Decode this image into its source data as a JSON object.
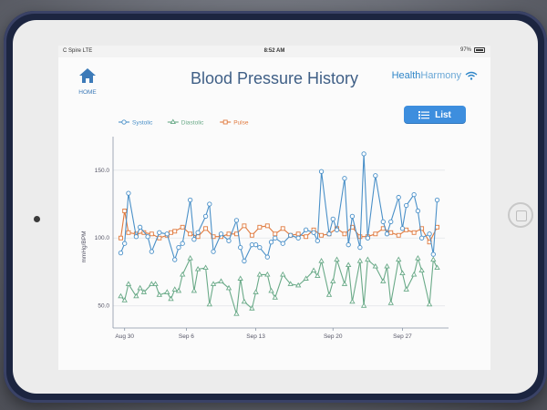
{
  "status_bar": {
    "carrier": "C Spire  LTE",
    "time": "8:52 AM",
    "battery": "97%"
  },
  "header": {
    "home_label": "HOME",
    "title": "Blood Pressure History",
    "logo_text_1": "Health",
    "logo_text_2": "Harmony",
    "list_label": "List"
  },
  "icons": {
    "home": "home-icon",
    "list": "list-icon",
    "wifi": "wifi-icon",
    "camera": "camera-dot",
    "device_home": "device-home-button"
  },
  "colors": {
    "systolic": "#4a90c8",
    "diastolic": "#6aaa88",
    "pulse": "#e07a3e",
    "title": "#3f5f86",
    "button": "#3d8ede"
  },
  "chart_data": {
    "type": "line",
    "ylabel": "mmHg/BPM",
    "ylim": [
      35,
      168
    ],
    "yticks": [
      50.0,
      100.0,
      150.0
    ],
    "ytick_labels": [
      "50.0",
      "100.0",
      "150.0"
    ],
    "xrange": [
      0,
      43
    ],
    "xticks": [
      {
        "x": 1.5,
        "label": "Aug 30"
      },
      {
        "x": 9.5,
        "label": "Sep 6"
      },
      {
        "x": 18.5,
        "label": "Sep 13"
      },
      {
        "x": 28.5,
        "label": "Sep 20"
      },
      {
        "x": 37.5,
        "label": "Sep 27"
      }
    ],
    "series": [
      {
        "name": "Systolic",
        "marker": "circle",
        "x": [
          1,
          1.5,
          2,
          3,
          3.5,
          4.5,
          5,
          6,
          7,
          8,
          8.5,
          9,
          10,
          10.5,
          11,
          12,
          12.5,
          13,
          14,
          15,
          16,
          16.5,
          17,
          18,
          18.5,
          19,
          20,
          20.5,
          21,
          22,
          23,
          24,
          25,
          26,
          26.5,
          27,
          28,
          28.5,
          29,
          30,
          30.5,
          31,
          32,
          32.5,
          33,
          34,
          35,
          35.5,
          36,
          37,
          37.5,
          38,
          39,
          39.5,
          40,
          41,
          41.5,
          42
        ],
        "y": [
          89,
          96,
          133,
          101,
          108,
          101,
          90,
          104,
          103,
          84,
          93,
          96,
          128,
          99,
          104,
          116,
          125,
          90,
          103,
          98,
          113,
          93,
          83,
          95,
          95,
          93,
          86,
          97,
          100,
          96,
          102,
          100,
          106,
          104,
          98,
          149,
          103,
          114,
          106,
          144,
          95,
          116,
          93,
          162,
          100,
          146,
          112,
          103,
          112,
          130,
          107,
          124,
          132,
          120,
          100,
          103,
          88,
          128
        ]
      },
      {
        "name": "Diastolic",
        "marker": "triangle",
        "x": [
          1,
          1.5,
          2,
          3,
          3.5,
          4,
          5,
          5.5,
          6,
          7,
          7.5,
          8,
          8.5,
          9,
          10,
          10.5,
          11,
          12,
          12.5,
          13,
          14,
          15,
          16,
          16.5,
          17,
          18,
          18.5,
          19,
          20,
          20.5,
          21,
          22,
          23,
          24,
          25,
          26,
          26.5,
          27,
          28,
          28.5,
          29,
          30,
          30.5,
          31,
          32,
          32.5,
          33,
          34,
          35,
          35.5,
          36,
          37,
          37.5,
          38,
          39,
          39.5,
          40,
          41,
          41.5,
          42
        ],
        "y": [
          57,
          54,
          66,
          57,
          63,
          60,
          66,
          66,
          58,
          60,
          55,
          62,
          61,
          73,
          85,
          61,
          77,
          78,
          51,
          66,
          68,
          63,
          44,
          70,
          53,
          48,
          60,
          73,
          73,
          61,
          56,
          73,
          66,
          65,
          70,
          76,
          72,
          83,
          58,
          68,
          84,
          66,
          80,
          53,
          83,
          50,
          84,
          79,
          68,
          79,
          52,
          84,
          74,
          62,
          73,
          85,
          76,
          51,
          84,
          78
        ]
      },
      {
        "name": "Pulse",
        "marker": "square",
        "x": [
          1,
          1.5,
          2,
          3,
          4,
          5,
          6,
          7,
          7.5,
          8,
          9,
          10,
          11,
          12,
          13,
          14,
          15,
          16,
          17,
          18,
          19,
          20,
          21,
          22,
          23,
          24,
          25,
          26,
          27,
          28,
          29,
          30,
          31,
          32,
          33,
          34,
          35,
          36,
          37,
          38,
          39,
          40,
          41,
          42
        ],
        "y": [
          100,
          120,
          104,
          103,
          104,
          103,
          100,
          102,
          104,
          105,
          108,
          103,
          101,
          107,
          101,
          101,
          103,
          103,
          109,
          102,
          108,
          109,
          103,
          107,
          102,
          103,
          101,
          106,
          102,
          103,
          107,
          103,
          108,
          101,
          101,
          103,
          107,
          104,
          102,
          106,
          104,
          107,
          97,
          108
        ]
      }
    ]
  }
}
